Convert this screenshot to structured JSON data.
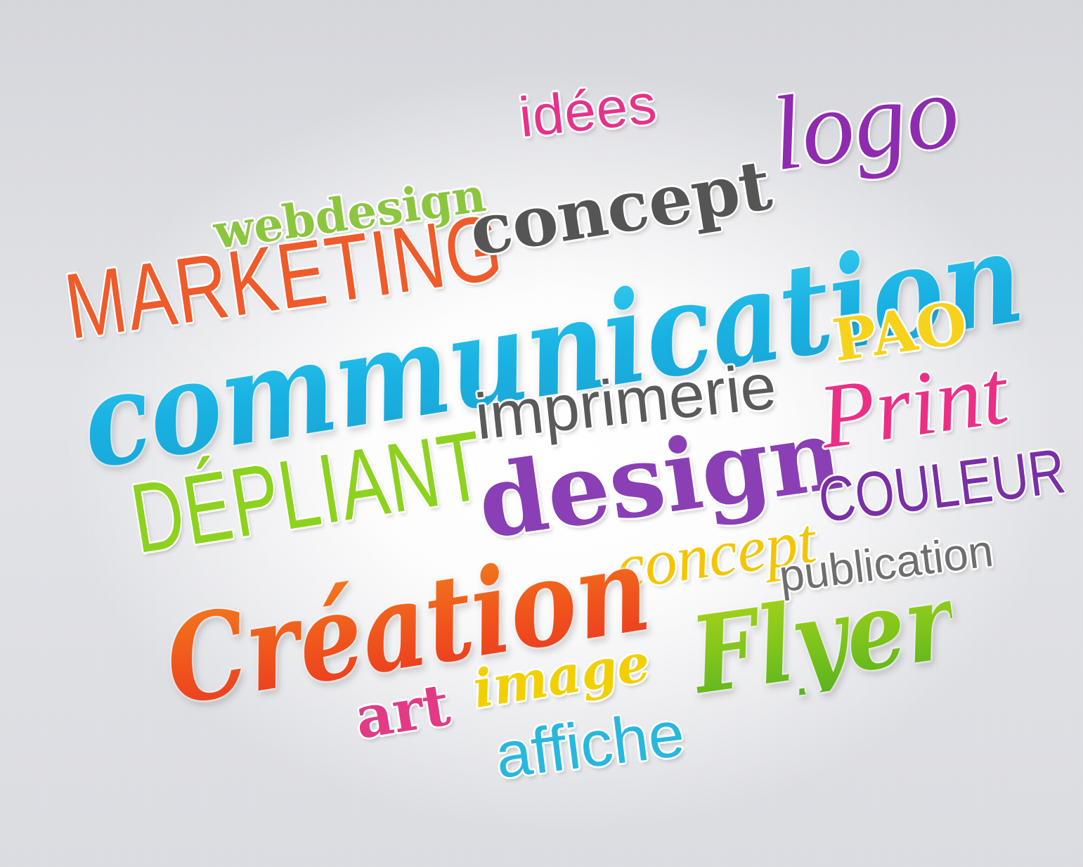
{
  "words": {
    "webdesign": {
      "text": "webdesign",
      "color": "#8cc63f"
    },
    "idees": {
      "text": "idées",
      "color": "#e8318a"
    },
    "logo": {
      "text": "logo",
      "color": "#8e2bb0"
    },
    "marketing": {
      "text": "MARKETING",
      "color": "#ef5b2a"
    },
    "concept_dark": {
      "text": "concept",
      "color": "#555555"
    },
    "communication": {
      "text": "communication",
      "color": "#1fb3e0"
    },
    "imprimerie": {
      "text": "imprimerie",
      "color": "#5a5a5a"
    },
    "pao": {
      "text": "PAO",
      "color": "#f7d21a"
    },
    "depliant": {
      "text": "DÉPLIANT",
      "color": "#8dd21f"
    },
    "design": {
      "text": "design",
      "color": "#8a3fb5"
    },
    "print": {
      "text": "Print",
      "color": "#ec2f86"
    },
    "concept_yellow": {
      "text": "concept",
      "color": "#f4c500"
    },
    "couleur": {
      "text": "COULEUR",
      "color": "#7a2fa6"
    },
    "creation": {
      "text": "Création",
      "color": "#f05a1e"
    },
    "publication": {
      "text": "publication",
      "color": "#6e6e6e"
    },
    "art": {
      "text": "art",
      "color": "#e33a86"
    },
    "image": {
      "text": "image",
      "color": "#f2d000"
    },
    "flyer": {
      "text": "Flyer",
      "color": "#78c71f"
    },
    "affiche": {
      "text": "affiche",
      "color": "#28b8de"
    }
  }
}
